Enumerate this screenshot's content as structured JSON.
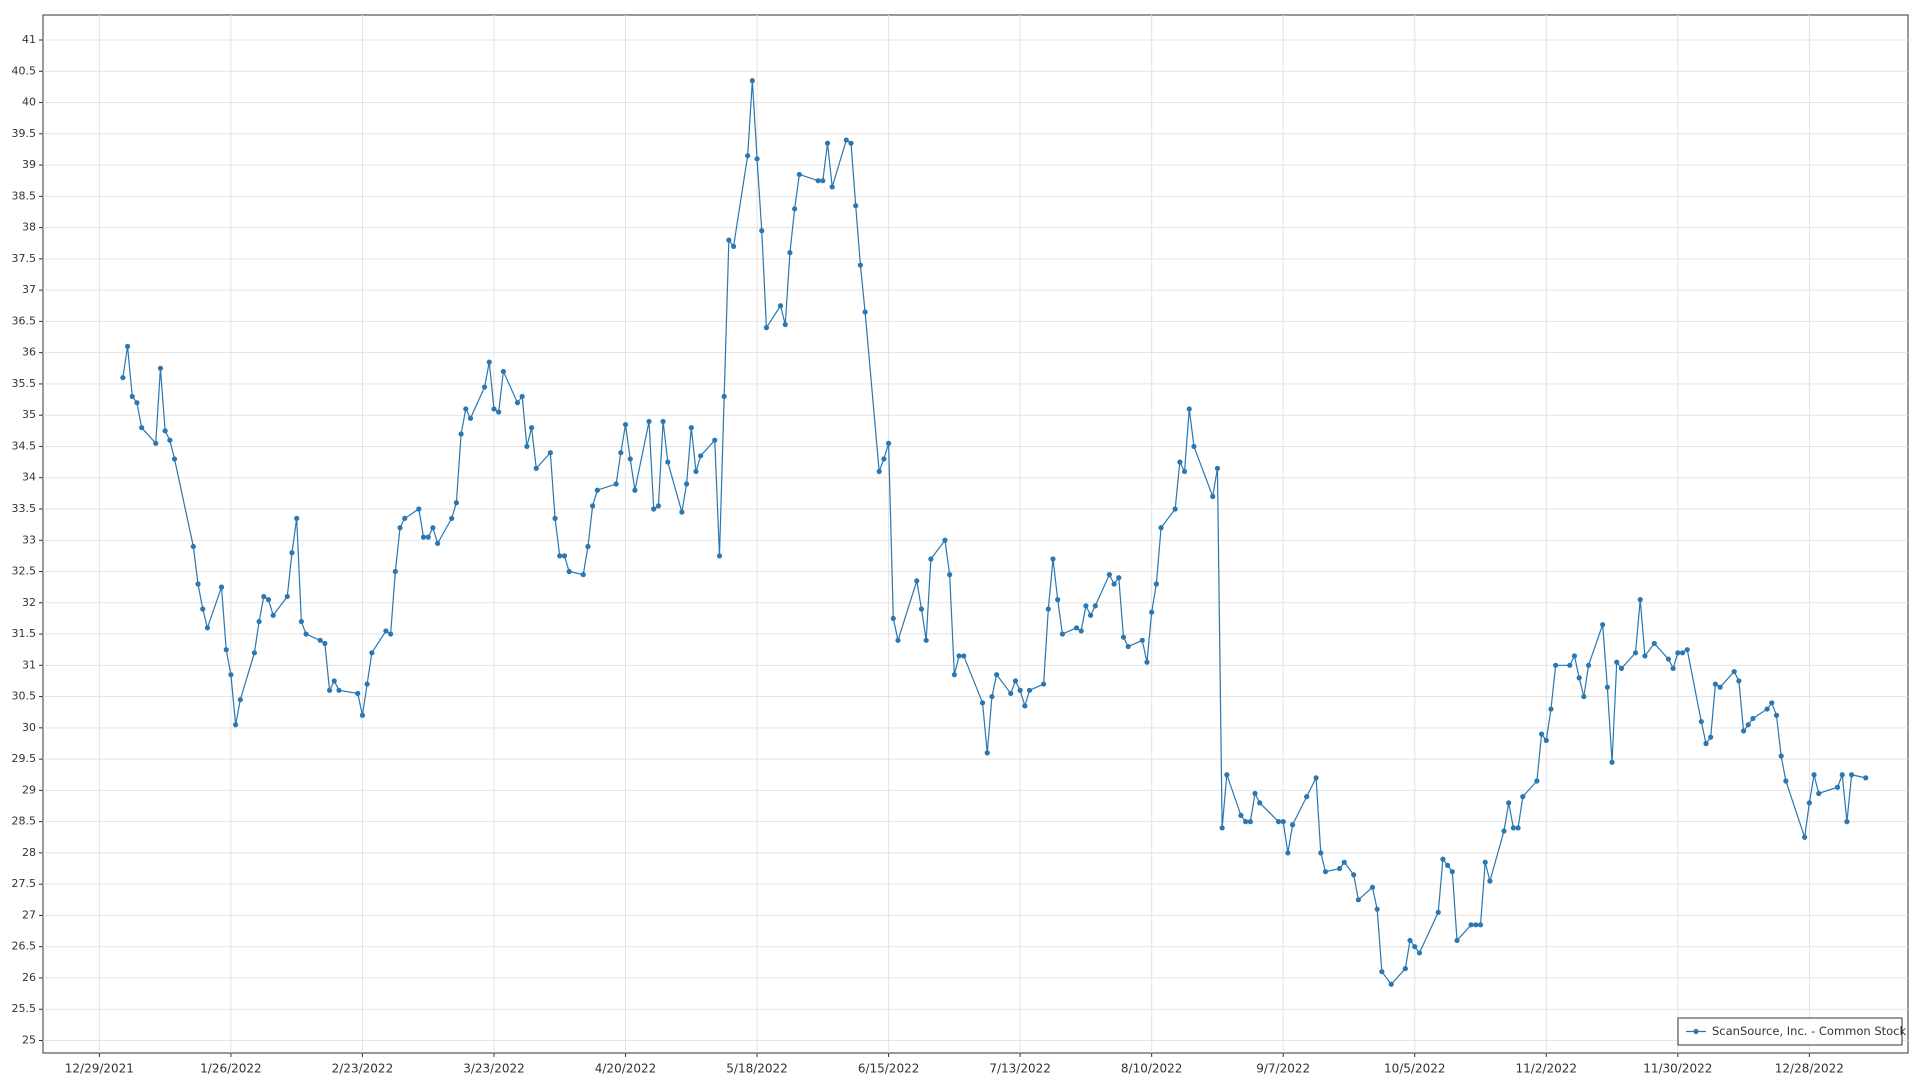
{
  "chart_data": {
    "type": "line",
    "x": [
      "2022-01-03",
      "2022-01-04",
      "2022-01-05",
      "2022-01-06",
      "2022-01-07",
      "2022-01-10",
      "2022-01-11",
      "2022-01-12",
      "2022-01-13",
      "2022-01-14",
      "2022-01-18",
      "2022-01-19",
      "2022-01-20",
      "2022-01-21",
      "2022-01-24",
      "2022-01-25",
      "2022-01-26",
      "2022-01-27",
      "2022-01-28",
      "2022-01-31",
      "2022-02-01",
      "2022-02-02",
      "2022-02-03",
      "2022-02-04",
      "2022-02-07",
      "2022-02-08",
      "2022-02-09",
      "2022-02-10",
      "2022-02-11",
      "2022-02-14",
      "2022-02-15",
      "2022-02-16",
      "2022-02-17",
      "2022-02-18",
      "2022-02-22",
      "2022-02-23",
      "2022-02-24",
      "2022-02-25",
      "2022-02-28",
      "2022-03-01",
      "2022-03-02",
      "2022-03-03",
      "2022-03-04",
      "2022-03-07",
      "2022-03-08",
      "2022-03-09",
      "2022-03-10",
      "2022-03-11",
      "2022-03-14",
      "2022-03-15",
      "2022-03-16",
      "2022-03-17",
      "2022-03-18",
      "2022-03-21",
      "2022-03-22",
      "2022-03-23",
      "2022-03-24",
      "2022-03-25",
      "2022-03-28",
      "2022-03-29",
      "2022-03-30",
      "2022-03-31",
      "2022-04-01",
      "2022-04-04",
      "2022-04-05",
      "2022-04-06",
      "2022-04-07",
      "2022-04-08",
      "2022-04-11",
      "2022-04-12",
      "2022-04-13",
      "2022-04-14",
      "2022-04-18",
      "2022-04-19",
      "2022-04-20",
      "2022-04-21",
      "2022-04-22",
      "2022-04-25",
      "2022-04-26",
      "2022-04-27",
      "2022-04-28",
      "2022-04-29",
      "2022-05-02",
      "2022-05-03",
      "2022-05-04",
      "2022-05-05",
      "2022-05-06",
      "2022-05-09",
      "2022-05-10",
      "2022-05-11",
      "2022-05-12",
      "2022-05-13",
      "2022-05-16",
      "2022-05-17",
      "2022-05-18",
      "2022-05-19",
      "2022-05-20",
      "2022-05-23",
      "2022-05-24",
      "2022-05-25",
      "2022-05-26",
      "2022-05-27",
      "2022-05-31",
      "2022-06-01",
      "2022-06-02",
      "2022-06-03",
      "2022-06-06",
      "2022-06-07",
      "2022-06-08",
      "2022-06-09",
      "2022-06-10",
      "2022-06-13",
      "2022-06-14",
      "2022-06-15",
      "2022-06-16",
      "2022-06-17",
      "2022-06-21",
      "2022-06-22",
      "2022-06-23",
      "2022-06-24",
      "2022-06-27",
      "2022-06-28",
      "2022-06-29",
      "2022-06-30",
      "2022-07-01",
      "2022-07-05",
      "2022-07-06",
      "2022-07-07",
      "2022-07-08",
      "2022-07-11",
      "2022-07-12",
      "2022-07-13",
      "2022-07-14",
      "2022-07-15",
      "2022-07-18",
      "2022-07-19",
      "2022-07-20",
      "2022-07-21",
      "2022-07-22",
      "2022-07-25",
      "2022-07-26",
      "2022-07-27",
      "2022-07-28",
      "2022-07-29",
      "2022-08-01",
      "2022-08-02",
      "2022-08-03",
      "2022-08-04",
      "2022-08-05",
      "2022-08-08",
      "2022-08-09",
      "2022-08-10",
      "2022-08-11",
      "2022-08-12",
      "2022-08-15",
      "2022-08-16",
      "2022-08-17",
      "2022-08-18",
      "2022-08-19",
      "2022-08-23",
      "2022-08-24",
      "2022-08-25",
      "2022-08-26",
      "2022-08-29",
      "2022-08-30",
      "2022-08-31",
      "2022-09-01",
      "2022-09-02",
      "2022-09-06",
      "2022-09-07",
      "2022-09-08",
      "2022-09-09",
      "2022-09-12",
      "2022-09-14",
      "2022-09-15",
      "2022-09-16",
      "2022-09-19",
      "2022-09-20",
      "2022-09-22",
      "2022-09-23",
      "2022-09-26",
      "2022-09-27",
      "2022-09-28",
      "2022-09-30",
      "2022-10-03",
      "2022-10-04",
      "2022-10-05",
      "2022-10-06",
      "2022-10-10",
      "2022-10-11",
      "2022-10-12",
      "2022-10-13",
      "2022-10-14",
      "2022-10-17",
      "2022-10-18",
      "2022-10-19",
      "2022-10-20",
      "2022-10-21",
      "2022-10-24",
      "2022-10-25",
      "2022-10-26",
      "2022-10-27",
      "2022-10-28",
      "2022-10-31",
      "2022-11-01",
      "2022-11-02",
      "2022-11-03",
      "2022-11-04",
      "2022-11-07",
      "2022-11-08",
      "2022-11-09",
      "2022-11-10",
      "2022-11-11",
      "2022-11-14",
      "2022-11-15",
      "2022-11-16",
      "2022-11-17",
      "2022-11-18",
      "2022-11-21",
      "2022-11-22",
      "2022-11-23",
      "2022-11-25",
      "2022-11-28",
      "2022-11-29",
      "2022-11-30",
      "2022-12-01",
      "2022-12-02",
      "2022-12-05",
      "2022-12-06",
      "2022-12-07",
      "2022-12-08",
      "2022-12-09",
      "2022-12-12",
      "2022-12-13",
      "2022-12-14",
      "2022-12-15",
      "2022-12-16",
      "2022-12-19",
      "2022-12-20",
      "2022-12-21",
      "2022-12-22",
      "2022-12-23",
      "2022-12-27",
      "2022-12-28",
      "2022-12-29",
      "2022-12-30",
      "2023-01-03",
      "2023-01-04",
      "2023-01-05",
      "2023-01-06",
      "2023-01-09"
    ],
    "series": [
      {
        "name": "ScanSource, Inc. - Common Stock",
        "color": "#2a77b1",
        "values": [
          35.6,
          36.1,
          35.3,
          35.2,
          34.8,
          34.55,
          35.75,
          34.75,
          34.6,
          34.3,
          32.9,
          32.3,
          31.9,
          31.6,
          32.25,
          31.25,
          30.85,
          30.05,
          30.45,
          31.2,
          31.7,
          32.1,
          32.05,
          31.8,
          32.1,
          32.8,
          33.35,
          31.7,
          31.5,
          31.4,
          31.35,
          30.6,
          30.75,
          30.6,
          30.55,
          30.2,
          30.7,
          31.2,
          31.55,
          31.5,
          32.5,
          33.2,
          33.35,
          33.5,
          33.05,
          33.05,
          33.2,
          32.95,
          33.35,
          33.6,
          34.7,
          35.1,
          34.95,
          35.45,
          35.85,
          35.1,
          35.05,
          35.7,
          35.2,
          35.3,
          34.5,
          34.8,
          34.15,
          34.4,
          33.35,
          32.75,
          32.75,
          32.5,
          32.45,
          32.9,
          33.55,
          33.8,
          33.9,
          34.4,
          34.85,
          34.3,
          33.8,
          34.9,
          33.5,
          33.55,
          34.9,
          34.25,
          33.45,
          33.9,
          34.8,
          34.1,
          34.35,
          34.6,
          32.75,
          35.3,
          37.8,
          37.7,
          39.15,
          40.35,
          39.1,
          37.95,
          36.4,
          36.75,
          36.45,
          37.6,
          38.3,
          38.85,
          38.75,
          38.75,
          39.35,
          38.65,
          39.4,
          39.35,
          38.35,
          37.4,
          36.65,
          34.1,
          34.3,
          34.55,
          31.75,
          31.4,
          32.35,
          31.9,
          31.4,
          32.7,
          33.0,
          32.45,
          30.85,
          31.15,
          31.15,
          30.4,
          29.6,
          30.5,
          30.85,
          30.55,
          30.75,
          30.6,
          30.35,
          30.6,
          30.7,
          31.9,
          32.7,
          32.05,
          31.5,
          31.6,
          31.55,
          31.95,
          31.8,
          31.95,
          32.45,
          32.3,
          32.4,
          31.45,
          31.3,
          31.4,
          31.05,
          31.85,
          32.3,
          33.2,
          33.5,
          34.25,
          34.1,
          35.1,
          34.5,
          33.7,
          34.15,
          28.4,
          29.25,
          28.6,
          28.5,
          28.5,
          28.95,
          28.8,
          28.5,
          28.5,
          28.0,
          28.45,
          28.9,
          29.2,
          28.0,
          27.7,
          27.75,
          27.85,
          27.65,
          27.25,
          27.45,
          27.1,
          26.1,
          25.9,
          26.15,
          26.6,
          26.5,
          26.4,
          27.05,
          27.9,
          27.8,
          27.7,
          26.6,
          26.85,
          26.85,
          26.85,
          27.85,
          27.55,
          28.35,
          28.8,
          28.4,
          28.4,
          28.9,
          29.15,
          29.9,
          29.8,
          30.3,
          31.0,
          31.0,
          31.15,
          30.8,
          30.5,
          31.0,
          31.65,
          30.65,
          29.45,
          31.05,
          30.95,
          31.2,
          32.05,
          31.15,
          31.35,
          31.1,
          30.95,
          31.2,
          31.2,
          31.25,
          30.1,
          29.75,
          29.85,
          30.7,
          30.65,
          30.9,
          30.75,
          29.95,
          30.05,
          30.15,
          30.3,
          30.4,
          30.2,
          29.55,
          29.15,
          28.25,
          28.8,
          29.25,
          28.95,
          29.05,
          29.25,
          28.5,
          29.25,
          29.2
        ]
      }
    ],
    "xlim": [
      "2021-12-17",
      "2023-01-18"
    ],
    "xticks": [
      {
        "value": "2021-12-29",
        "label": "12/29/2021"
      },
      {
        "value": "2022-01-26",
        "label": "1/26/2022"
      },
      {
        "value": "2022-02-23",
        "label": "2/23/2022"
      },
      {
        "value": "2022-03-23",
        "label": "3/23/2022"
      },
      {
        "value": "2022-04-20",
        "label": "4/20/2022"
      },
      {
        "value": "2022-05-18",
        "label": "5/18/2022"
      },
      {
        "value": "2022-06-15",
        "label": "6/15/2022"
      },
      {
        "value": "2022-07-13",
        "label": "7/13/2022"
      },
      {
        "value": "2022-08-10",
        "label": "8/10/2022"
      },
      {
        "value": "2022-09-07",
        "label": "9/7/2022"
      },
      {
        "value": "2022-10-05",
        "label": "10/5/2022"
      },
      {
        "value": "2022-11-02",
        "label": "11/2/2022"
      },
      {
        "value": "2022-11-30",
        "label": "11/30/2022"
      },
      {
        "value": "2022-12-28",
        "label": "12/28/2022"
      }
    ],
    "ylim": [
      24.8,
      41.4
    ],
    "yticks": [
      25,
      25.5,
      26,
      26.5,
      27,
      27.5,
      28,
      28.5,
      29,
      29.5,
      30,
      30.5,
      31,
      31.5,
      32,
      32.5,
      33,
      33.5,
      34,
      34.5,
      35,
      35.5,
      36,
      36.5,
      37,
      37.5,
      38,
      38.5,
      39,
      39.5,
      40,
      40.5,
      41
    ],
    "grid": true,
    "legend": "lower right"
  }
}
